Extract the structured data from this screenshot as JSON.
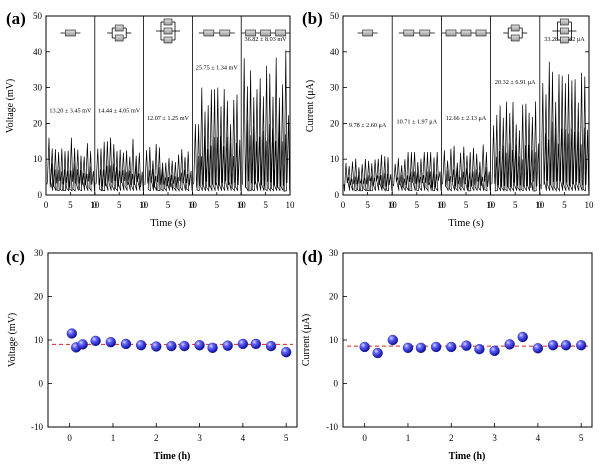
{
  "colors": {
    "signal": "#000000",
    "sphere": "#2020c8",
    "sphere_light": "#8a8af0",
    "reference": "#e02020"
  },
  "chart_data": [
    {
      "id": "a",
      "panel_label": "(a)",
      "type": "line",
      "ylabel": "Voltage (mV)",
      "xlabel": "Time (s)",
      "ylim": [
        0,
        50
      ],
      "y_ticks": [
        0,
        10,
        20,
        30,
        40,
        50
      ],
      "x_ticks_per_segment": [
        0,
        5,
        10
      ],
      "segments": [
        {
          "config": "1 device",
          "icon": "single",
          "annotation": "13.20 ± 3.45 mV",
          "peak_level": 14,
          "peak_max": 16
        },
        {
          "config": "2 devices in parallel",
          "icon": "parallel2",
          "annotation": "14.44 ± 4.05 mV",
          "peak_level": 14,
          "peak_max": 17
        },
        {
          "config": "3 devices in parallel",
          "icon": "parallel3",
          "annotation": "12.07 ± 1.25 mV",
          "peak_level": 12,
          "peak_max": 18
        },
        {
          "config": "2 devices in series",
          "icon": "series2",
          "annotation": "25.75 ± 1.34 mV",
          "peak_level": 26,
          "peak_max": 30
        },
        {
          "config": "3 devices in series",
          "icon": "series3",
          "annotation": "36.82 ± 8.03 mV",
          "peak_level": 34,
          "peak_max": 44
        }
      ]
    },
    {
      "id": "b",
      "panel_label": "(b)",
      "type": "line",
      "ylabel": "Current (μA)",
      "xlabel": "Time (s)",
      "ylim": [
        0,
        50
      ],
      "y_ticks": [
        0,
        10,
        20,
        30,
        40,
        50
      ],
      "x_ticks_per_segment": [
        0,
        5,
        10
      ],
      "segments": [
        {
          "config": "1 device",
          "icon": "single",
          "annotation": "9.78 ± 2.60 μA",
          "peak_level": 10,
          "peak_max": 13
        },
        {
          "config": "2 devices in series",
          "icon": "series2",
          "annotation": "10.71 ± 1.97 μA",
          "peak_level": 11,
          "peak_max": 12
        },
        {
          "config": "3 devices in series",
          "icon": "series3",
          "annotation": "12.66 ± 2.13 μA",
          "peak_level": 12,
          "peak_max": 15
        },
        {
          "config": "2 devices in parallel",
          "icon": "parallel2",
          "annotation": "20.32 ± 6.91 μA",
          "peak_level": 22,
          "peak_max": 30
        },
        {
          "config": "3 devices in parallel",
          "icon": "parallel3",
          "annotation": "33.28 ± 7.82 μA",
          "peak_level": 34,
          "peak_max": 43
        }
      ]
    },
    {
      "id": "c",
      "panel_label": "(c)",
      "type": "scatter",
      "ylabel": "Voltage (mV)",
      "xlabel": "Time (h)",
      "xlim": [
        -0.5,
        5.25
      ],
      "ylim": [
        -10,
        30
      ],
      "x_ticks": [
        0,
        1,
        2,
        3,
        4,
        5
      ],
      "y_ticks": [
        -10,
        0,
        10,
        20,
        30
      ],
      "reference_line": 9,
      "x": [
        0.05,
        0.15,
        0.3,
        0.6,
        0.95,
        1.3,
        1.65,
        2.0,
        2.35,
        2.65,
        3.0,
        3.3,
        3.65,
        4.0,
        4.3,
        4.65,
        5.0
      ],
      "y": [
        11.5,
        8.3,
        9.0,
        9.8,
        9.5,
        9.1,
        8.8,
        8.5,
        8.6,
        8.6,
        8.8,
        8.2,
        8.7,
        9.1,
        9.1,
        8.6,
        7.2
      ]
    },
    {
      "id": "d",
      "panel_label": "(d)",
      "type": "scatter",
      "ylabel": "Current (μA)",
      "xlabel": "Time (h)",
      "xlim": [
        -0.5,
        5.25
      ],
      "ylim": [
        -10,
        30
      ],
      "x_ticks": [
        0,
        1,
        2,
        3,
        4,
        5
      ],
      "y_ticks": [
        -10,
        0,
        10,
        20,
        30
      ],
      "reference_line": 8.6,
      "x": [
        0.0,
        0.3,
        0.65,
        1.0,
        1.3,
        1.65,
        2.0,
        2.35,
        2.65,
        3.0,
        3.35,
        3.65,
        4.0,
        4.35,
        4.65,
        5.0
      ],
      "y": [
        8.4,
        7.0,
        10.0,
        8.2,
        8.2,
        8.4,
        8.4,
        8.7,
        7.9,
        7.5,
        9.0,
        10.7,
        8.1,
        8.8,
        8.8,
        8.8
      ]
    }
  ]
}
